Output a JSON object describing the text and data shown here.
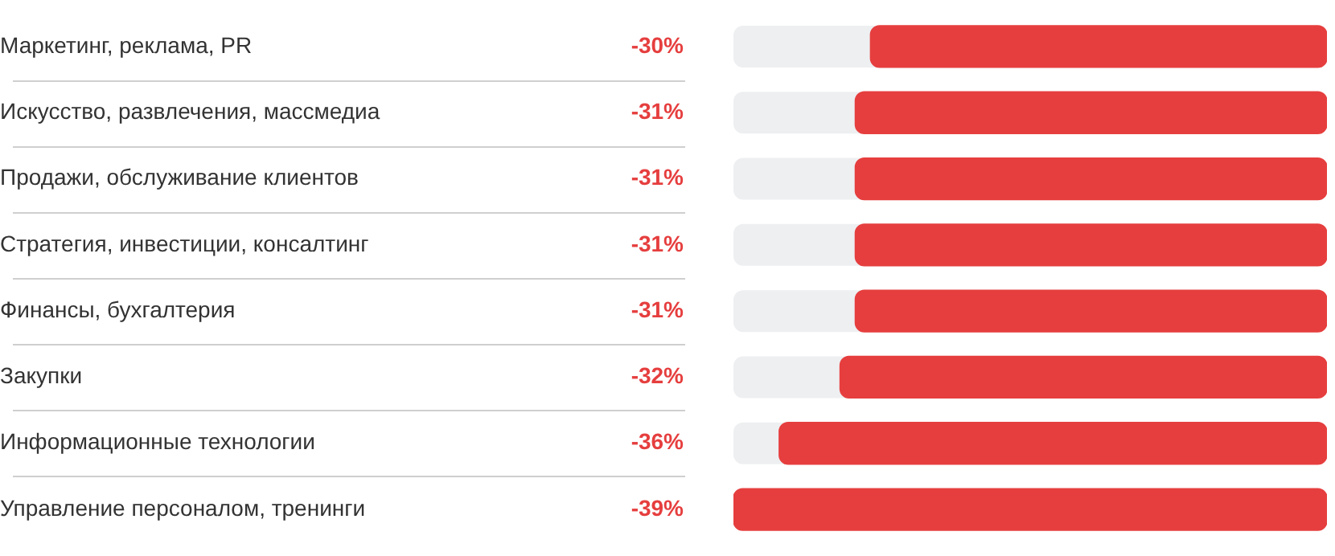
{
  "chart_data": {
    "type": "bar",
    "orientation": "horizontal",
    "categories": [
      "Маркетинг, реклама, PR",
      "Искусство, развлечения, массмедиа",
      "Продажи, обслуживание клиентов",
      "Стратегия, инвестиции, консалтинг",
      "Финансы, бухгалтерия",
      "Закупки",
      "Информационные технологии",
      "Управление персоналом, тренинги"
    ],
    "values": [
      -30,
      -31,
      -31,
      -31,
      -31,
      -32,
      -36,
      -39
    ],
    "value_labels": [
      "-30%",
      "-31%",
      "-31%",
      "-31%",
      "-31%",
      "-32%",
      "-36%",
      "-39%"
    ],
    "color": "#e63e3e",
    "xlim": [
      -39,
      0
    ],
    "tick_labels": "y"
  }
}
